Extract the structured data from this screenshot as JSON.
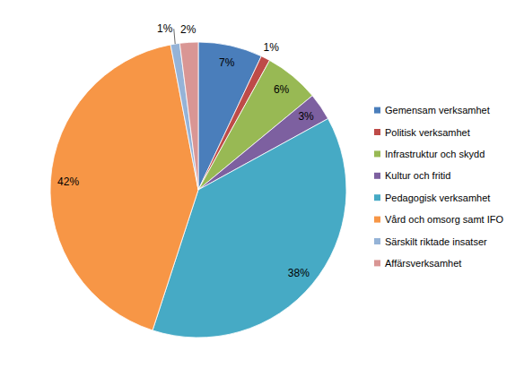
{
  "chart_data": {
    "type": "pie",
    "categories": [
      "Gemensam verksamhet",
      "Politisk verksamhet",
      "Infrastruktur och skydd",
      "Kultur och fritid",
      "Pedagogisk verksamhet",
      "Vård och omsorg samt IFO",
      "Särskilt riktade insatser",
      "Affärsverksamhet"
    ],
    "values": [
      7,
      1,
      6,
      3,
      38,
      42,
      1,
      2
    ],
    "value_labels": [
      "7%",
      "1%",
      "6%",
      "3%",
      "38%",
      "42%",
      "1%",
      "2%"
    ],
    "colors": [
      "#4a7ebb",
      "#be4b48",
      "#98b954",
      "#7d60a0",
      "#46aac5",
      "#f79646",
      "#95b3d7",
      "#d99694"
    ],
    "data_labels": true,
    "legend": "right"
  }
}
